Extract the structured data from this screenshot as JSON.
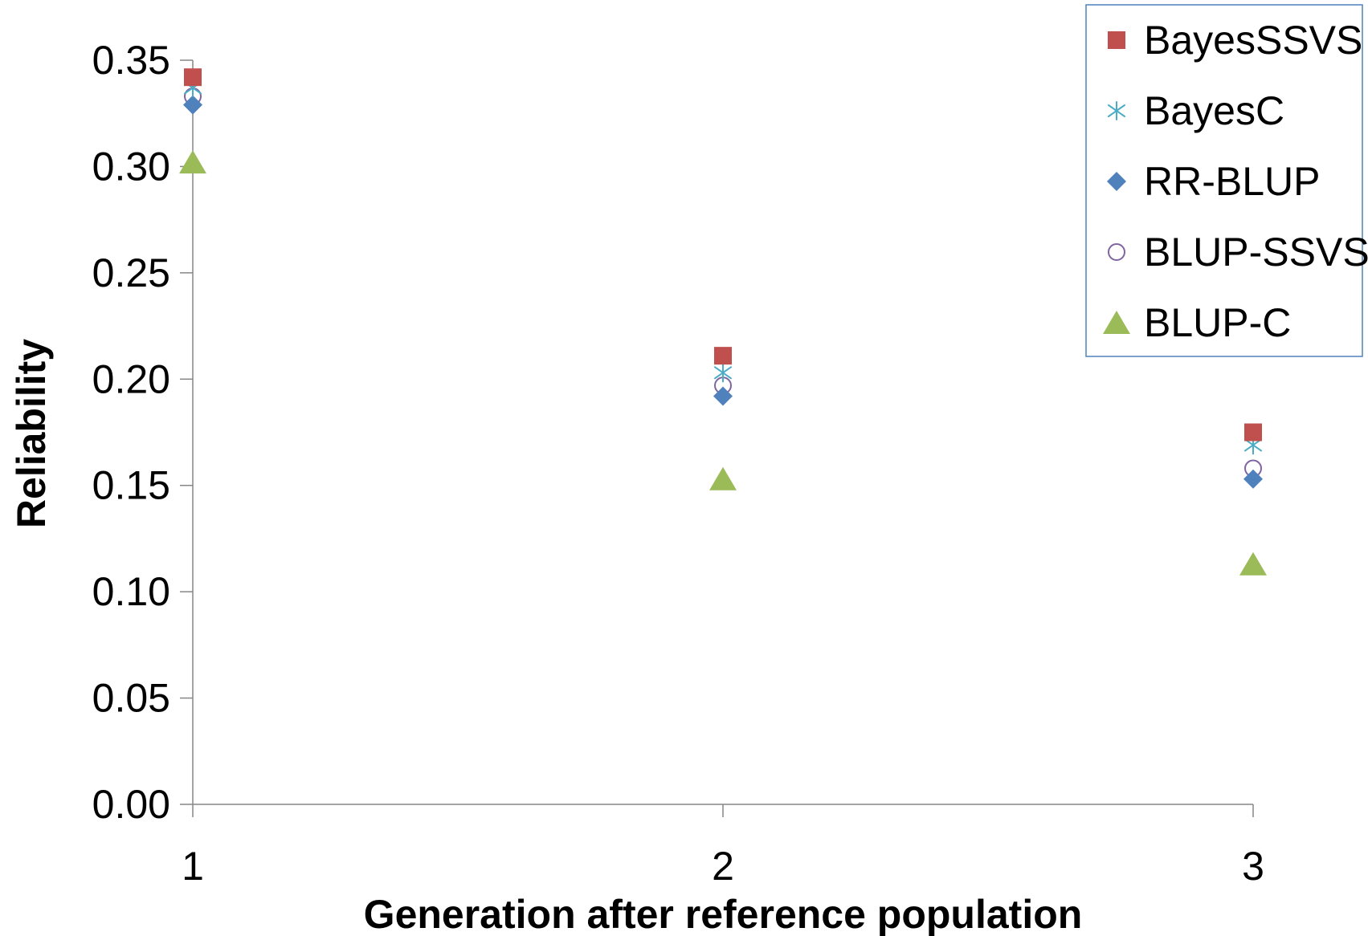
{
  "chart_data": {
    "type": "scatter",
    "title": "",
    "xlabel": "Generation after reference population",
    "ylabel": "Reliability",
    "x": [
      1,
      2,
      3
    ],
    "xticks": [
      "1",
      "2",
      "3"
    ],
    "ylim": [
      0,
      0.35
    ],
    "yticks": [
      "0.00",
      "0.05",
      "0.10",
      "0.15",
      "0.20",
      "0.25",
      "0.30",
      "0.35"
    ],
    "grid": false,
    "legend_position": "top-right",
    "series": [
      {
        "name": "BayesSSVS",
        "marker": "square",
        "color": "#C0504D",
        "values": [
          0.342,
          0.211,
          0.175
        ]
      },
      {
        "name": "BayesC",
        "marker": "asterisk",
        "color": "#4BACC6",
        "values": [
          0.337,
          0.203,
          0.169
        ]
      },
      {
        "name": "RR-BLUP",
        "marker": "diamond",
        "color": "#4F81BD",
        "values": [
          0.329,
          0.192,
          0.153
        ]
      },
      {
        "name": "BLUP-SSVS",
        "marker": "circle",
        "color": "#8064A2",
        "values": [
          0.333,
          0.197,
          0.158
        ]
      },
      {
        "name": "BLUP-C",
        "marker": "triangle",
        "color": "#9BBB59",
        "values": [
          0.302,
          0.153,
          0.113
        ]
      }
    ]
  }
}
